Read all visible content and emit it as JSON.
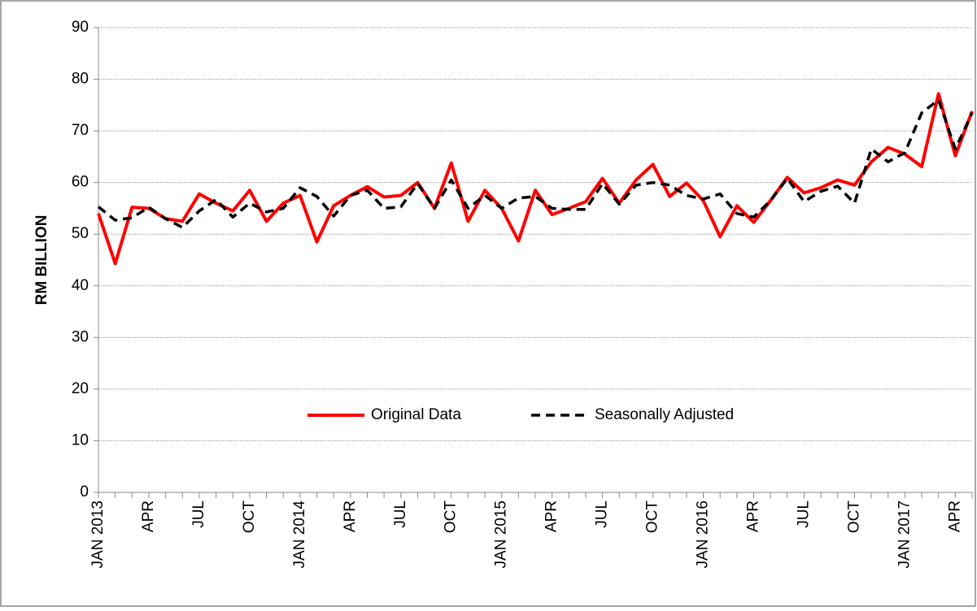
{
  "chart_data": {
    "type": "line",
    "ylabel": "RM BILLION",
    "categories": [
      "JAN 2013",
      null,
      null,
      "APR",
      null,
      null,
      "JUL",
      null,
      null,
      "OCT",
      null,
      null,
      "JAN 2014",
      null,
      null,
      "APR",
      null,
      null,
      "JUL",
      null,
      null,
      "OCT",
      null,
      null,
      "JAN 2015",
      null,
      null,
      "APR",
      null,
      null,
      "JUL",
      null,
      null,
      "OCT",
      null,
      null,
      "JAN 2016",
      null,
      null,
      "APR",
      null,
      null,
      "JUL",
      null,
      null,
      "OCT",
      null,
      null,
      "JAN 2017",
      null,
      null,
      "APR",
      null
    ],
    "series": [
      {
        "name": "Original Data",
        "color": "#ff0000",
        "dash": false,
        "values": [
          54,
          44.3,
          55.2,
          55,
          53,
          52.5,
          57.8,
          56,
          54.5,
          58.5,
          52.5,
          56,
          57.5,
          48.5,
          55.5,
          57.5,
          59.2,
          57.2,
          57.5,
          60,
          55,
          63.8,
          52.5,
          58.5,
          55,
          48.7,
          58.5,
          53.8,
          55,
          56.3,
          60.8,
          56,
          60.5,
          63.5,
          57.3,
          59.9,
          56.5,
          49.5,
          55.5,
          52.3,
          56.5,
          61,
          58,
          59,
          60.5,
          59.5,
          64,
          66.8,
          65.5,
          63.1,
          77.2,
          65.2,
          73.8
        ]
      },
      {
        "name": "Seasonally Adjusted",
        "color": "#000000",
        "dash": true,
        "values": [
          55.3,
          52.7,
          53.2,
          55.2,
          53,
          51.3,
          54.5,
          56.7,
          53.3,
          56,
          54.3,
          55,
          59,
          57.3,
          53.5,
          57.5,
          58.5,
          55,
          55.3,
          59.8,
          55,
          60.5,
          55,
          57.5,
          55,
          57,
          57.3,
          55,
          54.8,
          54.8,
          59.8,
          55.8,
          59.5,
          60,
          59.5,
          57.5,
          56.8,
          57.8,
          54,
          53.3,
          56.5,
          60.8,
          56.3,
          58.3,
          59.3,
          56,
          66.5,
          64,
          65.8,
          73.5,
          76,
          66.5,
          73.5
        ]
      }
    ],
    "ylim": [
      0,
      90
    ],
    "yticks": [
      0,
      10,
      20,
      30,
      40,
      50,
      60,
      70,
      80,
      90
    ],
    "grid": true,
    "legend": "center"
  }
}
